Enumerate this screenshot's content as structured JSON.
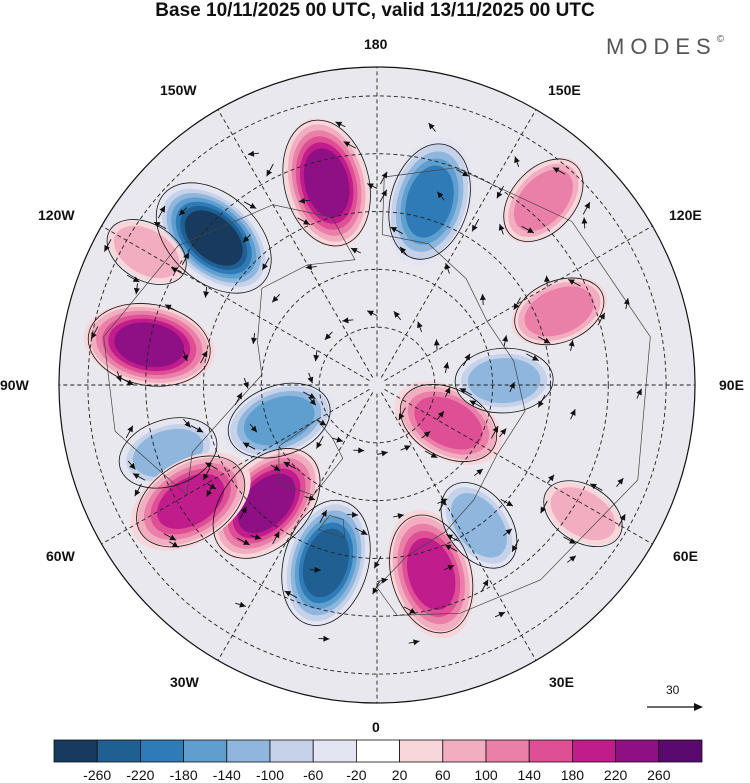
{
  "title": "Base 10/11/2025 00 UTC, valid 13/11/2025 00 UTC",
  "brand": "MODES",
  "brand_mark": "©",
  "longitude_labels": {
    "lon_180": "180",
    "lon_150e": "150E",
    "lon_120e": "120E",
    "lon_90e": "90E",
    "lon_60e": "60E",
    "lon_30e": "30E",
    "lon_0": "0",
    "lon_30w": "30W",
    "lon_60w": "60W",
    "lon_90w": "90W",
    "lon_120w": "120W",
    "lon_150w": "150W"
  },
  "reference_vector": {
    "label": "30",
    "value": 30
  },
  "colorbar": {
    "colors": [
      "#173a5e",
      "#1f5f92",
      "#2f7bb8",
      "#5f9fd0",
      "#8fb6dd",
      "#c6d2ea",
      "#e4e5f2",
      "#ffffff",
      "#f8d6da",
      "#f2aec0",
      "#ea7fa7",
      "#de4f96",
      "#c01c8c",
      "#8f0f84",
      "#5a0a6e"
    ],
    "labels": [
      "-260",
      "-220",
      "-180",
      "-140",
      "-100",
      "-60",
      "-20",
      "20",
      "60",
      "100",
      "140",
      "180",
      "220",
      "260"
    ]
  },
  "anomaly_centers": [
    {
      "id": "neg-120w",
      "lon": -132,
      "colat": 38,
      "value": -270
    },
    {
      "id": "pos-165w",
      "lon": -166,
      "colat": 36,
      "value": 240
    },
    {
      "id": "neg-165e",
      "lon": 164,
      "colat": 33,
      "value": -200
    },
    {
      "id": "pos-140e",
      "lon": 138,
      "colat": 43,
      "value": 110
    },
    {
      "id": "pos-115e",
      "lon": 112,
      "colat": 34,
      "value": 100
    },
    {
      "id": "pos-100w",
      "lon": -100,
      "colat": 40,
      "value": 220
    },
    {
      "id": "neg-70w",
      "lon": -72,
      "colat": 38,
      "value": -130
    },
    {
      "id": "neg-80w",
      "lon": -70,
      "colat": 18,
      "value": -150
    },
    {
      "id": "pos-40w",
      "lon": -43,
      "colat": 28,
      "value": 240
    },
    {
      "id": "pos-55w",
      "lon": -58,
      "colat": 38,
      "value": 200
    },
    {
      "id": "neg-20w",
      "lon": -16,
      "colat": 32,
      "value": -240
    },
    {
      "id": "pos-15e",
      "lon": 16,
      "colat": 34,
      "value": 210
    },
    {
      "id": "neg-30e",
      "lon": 36,
      "colat": 30,
      "value": -110
    },
    {
      "id": "pos-60e",
      "lon": 62,
      "colat": 14,
      "value": 140
    },
    {
      "id": "neg-90e",
      "lon": 92,
      "colat": 22,
      "value": -120
    },
    {
      "id": "pos-60e-outer",
      "lon": 58,
      "colat": 42,
      "value": 70
    },
    {
      "id": "pos-120w-outer",
      "lon": -120,
      "colat": 46,
      "value": 70
    }
  ]
}
